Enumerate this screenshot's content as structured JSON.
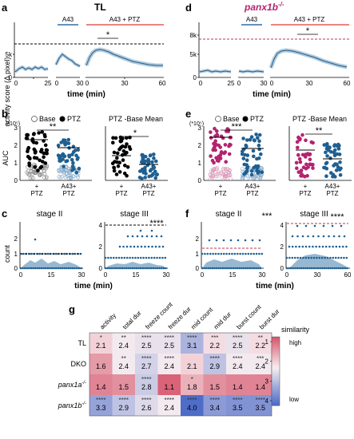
{
  "colors": {
    "blue": "#1f5f91",
    "blue_fill": "#7ea6c7",
    "magenta": "#b3246e",
    "magenta_light": "#d99ab9",
    "red_bar": "#e05d5d",
    "dash_red": "#c0334d"
  },
  "figure": {
    "panels": {
      "a": {
        "letter": "a",
        "title": "TL",
        "labels": {
          "ylabel": "activity score (Δ pixel)",
          "xlabel": "time (min)",
          "a43": "A43",
          "a43ptz": "A43 + PTZ",
          "star": "*"
        },
        "ticks_y": [
          "5k",
          "0"
        ],
        "ticks_x1": [
          "0",
          "25"
        ],
        "ticks_x2": [
          "0",
          "30"
        ],
        "ticks_x3": [
          "0",
          "30",
          "60"
        ]
      },
      "d": {
        "letter": "d",
        "title": "panx1b",
        "title_sup": "-/-",
        "labels": {
          "a43": "A43",
          "a43ptz": "A43 + PTZ",
          "xlabel": "time (min)",
          "star": "*"
        },
        "ticks_y": [
          "8k",
          "5k",
          "0"
        ],
        "ticks_x1": [
          "0",
          "25"
        ],
        "ticks_x2": [
          "0",
          "30"
        ],
        "ticks_x3": [
          "0",
          "30",
          "60"
        ]
      },
      "b": {
        "letter": "b",
        "mult": "(*10⁵)",
        "legend_base": "Base",
        "legend_ptz": "PTZ",
        "ylabel": "AUC",
        "ticks_y": [
          "3",
          "2",
          "1",
          "0"
        ],
        "sig1": "**",
        "sub_title": "PTZ -Base Mean",
        "sig2": "*",
        "xt1": [
          "+",
          "PTZ"
        ],
        "xt2": [
          "A43+",
          "PTZ"
        ],
        "xt3": [
          "+",
          "PTZ"
        ],
        "xt4": [
          "A43+",
          "PTZ"
        ]
      },
      "e": {
        "letter": "e",
        "mult": "(*10⁵)",
        "legend_base": "Base",
        "legend_ptz": "PTZ",
        "ticks_y": [
          "3",
          "2",
          "1",
          "0"
        ],
        "sig1": "***",
        "sub_title": "PTZ -Base Mean",
        "sig2": "**",
        "xt1": [
          "+",
          "PTZ"
        ],
        "xt2": [
          "A43+",
          "PTZ"
        ],
        "xt3": [
          "+",
          "PTZ"
        ],
        "xt4": [
          "A43+",
          "PTZ"
        ]
      },
      "c": {
        "letter": "c",
        "ylabel": "count",
        "xlabel": "time (min)",
        "stage2": "stage II",
        "stage3": "stage III",
        "sig": "****",
        "ticks_y1": [
          "2",
          "1",
          "0"
        ],
        "ticks_y2": [
          "4",
          "2",
          "0"
        ],
        "ticks_x1": [
          "0",
          "15",
          "30"
        ],
        "ticks_x2": [
          "0",
          "15",
          "30"
        ]
      },
      "f": {
        "letter": "f",
        "xlabel": "time (min)",
        "stage2": "stage II",
        "stage3": "stage III",
        "sig1": "***",
        "sig2": "****",
        "ticks_y1": [
          "2",
          "1",
          "0"
        ],
        "ticks_y2": [
          "4",
          "2",
          "0"
        ],
        "ticks_x1": [
          "0",
          "15",
          "30"
        ],
        "ticks_x2": [
          "0",
          "30",
          "60"
        ]
      },
      "g": {
        "letter": "g",
        "legend_title": "similarity",
        "legend_high": "high",
        "legend_low": "low",
        "legend_ticks": [
          "1",
          "2",
          "3",
          "4"
        ]
      }
    }
  },
  "chart_data": {
    "type": "heatmap",
    "columns": [
      "activity",
      "total dur",
      "freeze count",
      "freeze dur",
      "mid count",
      "mid dur",
      "burst count",
      "burst dur"
    ],
    "rows": [
      {
        "label": "TL",
        "italic": false,
        "sup": "",
        "values": [
          2.1,
          2.4,
          2.5,
          2.5,
          3.1,
          2.2,
          2.5,
          2.2
        ],
        "stars": [
          "*",
          "**",
          "****",
          "****",
          "****",
          "***",
          "****",
          "**"
        ]
      },
      {
        "label": "DKO",
        "italic": false,
        "sup": "",
        "values": [
          1.6,
          2.4,
          2.7,
          2.4,
          2.1,
          2.9,
          2.4,
          2.4
        ],
        "stars": [
          "",
          "**",
          "****",
          "****",
          "",
          "****",
          "****",
          "***"
        ]
      },
      {
        "label": "panx1a",
        "italic": true,
        "sup": "-/-",
        "values": [
          1.4,
          1.5,
          2.8,
          1.1,
          1.8,
          1.5,
          1.4,
          1.4
        ],
        "stars": [
          "",
          "",
          "****",
          "",
          "*",
          "",
          "",
          ""
        ]
      },
      {
        "label": "panx1b",
        "italic": true,
        "sup": "-/-",
        "values": [
          3.3,
          2.9,
          2.6,
          2.4,
          4.0,
          3.4,
          3.5,
          3.5
        ],
        "stars": [
          "****",
          "****",
          "****",
          "****",
          "****",
          "****",
          "****",
          "****"
        ]
      }
    ],
    "color_range": [
      1,
      4
    ]
  }
}
